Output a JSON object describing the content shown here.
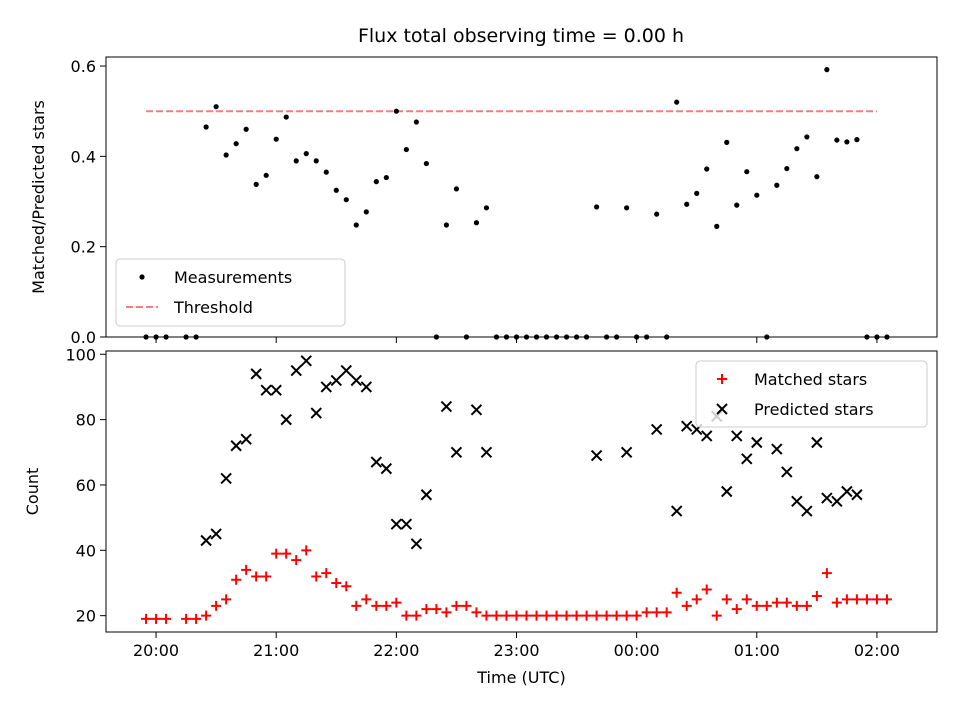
{
  "title": "Flux total observing time = 0.00 h",
  "colors": {
    "measurements": "#000000",
    "threshold": "#f08080",
    "matched": "#ff0000",
    "predicted": "#000000"
  },
  "chart_data": [
    {
      "type": "scatter",
      "ylabel": "Matched/Predicted stars",
      "xlabel": "",
      "xlim": [
        "19:35",
        "02:30"
      ],
      "ylim": [
        0,
        0.62
      ],
      "yticks": [
        "0.0",
        "0.2",
        "0.4",
        "0.6"
      ],
      "legend": {
        "placement": "bottom-left",
        "entries": [
          "Measurements",
          "Threshold"
        ]
      },
      "threshold": {
        "name": "Threshold",
        "y": 0.5,
        "x_range": [
          "19:55",
          "02:00"
        ]
      },
      "series": [
        {
          "name": "Measurements",
          "points": [
            [
              "19:55",
              0
            ],
            [
              "20:00",
              0
            ],
            [
              "20:05",
              0
            ],
            [
              "20:15",
              0
            ],
            [
              "20:20",
              0
            ],
            [
              "20:25",
              0.465
            ],
            [
              "20:30",
              0.51
            ],
            [
              "20:35",
              0.403
            ],
            [
              "20:40",
              0.428
            ],
            [
              "20:45",
              0.46
            ],
            [
              "20:50",
              0.338
            ],
            [
              "20:55",
              0.358
            ],
            [
              "21:00",
              0.438
            ],
            [
              "21:05",
              0.487
            ],
            [
              "21:10",
              0.39
            ],
            [
              "21:15",
              0.406
            ],
            [
              "21:20",
              0.39
            ],
            [
              "21:25",
              0.365
            ],
            [
              "21:30",
              0.325
            ],
            [
              "21:35",
              0.304
            ],
            [
              "21:40",
              0.248
            ],
            [
              "21:45",
              0.277
            ],
            [
              "21:50",
              0.344
            ],
            [
              "21:55",
              0.353
            ],
            [
              "22:00",
              0.5
            ],
            [
              "22:05",
              0.415
            ],
            [
              "22:10",
              0.476
            ],
            [
              "22:15",
              0.384
            ],
            [
              "22:20",
              0
            ],
            [
              "22:25",
              0.248
            ],
            [
              "22:30",
              0.328
            ],
            [
              "22:35",
              0
            ],
            [
              "22:40",
              0.253
            ],
            [
              "22:45",
              0.286
            ],
            [
              "22:50",
              0
            ],
            [
              "22:55",
              0
            ],
            [
              "23:00",
              0
            ],
            [
              "23:05",
              0
            ],
            [
              "23:10",
              0
            ],
            [
              "23:15",
              0
            ],
            [
              "23:20",
              0
            ],
            [
              "23:25",
              0
            ],
            [
              "23:30",
              0
            ],
            [
              "23:35",
              0
            ],
            [
              "23:40",
              0.288
            ],
            [
              "23:45",
              0
            ],
            [
              "23:50",
              0
            ],
            [
              "23:55",
              0.286
            ],
            [
              "00:00",
              0
            ],
            [
              "00:05",
              0
            ],
            [
              "00:10",
              0.272
            ],
            [
              "00:15",
              0
            ],
            [
              "00:20",
              0.52
            ],
            [
              "00:25",
              0.294
            ],
            [
              "00:30",
              0.318
            ],
            [
              "00:35",
              0.372
            ],
            [
              "00:40",
              0.245
            ],
            [
              "00:45",
              0.431
            ],
            [
              "00:50",
              0.292
            ],
            [
              "00:55",
              0.366
            ],
            [
              "01:00",
              0.314
            ],
            [
              "01:05",
              0
            ],
            [
              "01:10",
              0.336
            ],
            [
              "01:15",
              0.373
            ],
            [
              "01:20",
              0.417
            ],
            [
              "01:25",
              0.443
            ],
            [
              "01:30",
              0.355
            ],
            [
              "01:35",
              0.592
            ],
            [
              "01:40",
              0.436
            ],
            [
              "01:45",
              0.432
            ],
            [
              "01:50",
              0.437
            ],
            [
              "01:55",
              0
            ],
            [
              "02:00",
              0
            ],
            [
              "02:05",
              0
            ]
          ]
        }
      ],
      "xticks": [
        "20:00",
        "21:00",
        "22:00",
        "23:00",
        "00:00",
        "01:00",
        "02:00"
      ]
    },
    {
      "type": "scatter",
      "ylabel": "Count",
      "xlabel": "Time (UTC)",
      "xlim": [
        "19:35",
        "02:30"
      ],
      "ylim": [
        15,
        101
      ],
      "yticks": [
        "20",
        "40",
        "60",
        "80",
        "100"
      ],
      "xticks": [
        "20:00",
        "21:00",
        "22:00",
        "23:00",
        "00:00",
        "01:00",
        "02:00"
      ],
      "legend": {
        "placement": "top-right",
        "entries": [
          "Matched stars",
          "Predicted stars"
        ]
      },
      "series": [
        {
          "name": "Matched stars",
          "marker": "plus",
          "points": [
            [
              "19:55",
              19
            ],
            [
              "20:00",
              19
            ],
            [
              "20:05",
              19
            ],
            [
              "20:15",
              19
            ],
            [
              "20:20",
              19
            ],
            [
              "20:25",
              20
            ],
            [
              "20:30",
              23
            ],
            [
              "20:35",
              25
            ],
            [
              "20:40",
              31
            ],
            [
              "20:45",
              34
            ],
            [
              "20:50",
              32
            ],
            [
              "20:55",
              32
            ],
            [
              "21:00",
              39
            ],
            [
              "21:05",
              39
            ],
            [
              "21:10",
              37
            ],
            [
              "21:15",
              40
            ],
            [
              "21:20",
              32
            ],
            [
              "21:25",
              33
            ],
            [
              "21:30",
              30
            ],
            [
              "21:35",
              29
            ],
            [
              "21:40",
              23
            ],
            [
              "21:45",
              25
            ],
            [
              "21:50",
              23
            ],
            [
              "21:55",
              23
            ],
            [
              "22:00",
              24
            ],
            [
              "22:05",
              20
            ],
            [
              "22:10",
              20
            ],
            [
              "22:15",
              22
            ],
            [
              "22:20",
              22
            ],
            [
              "22:25",
              21
            ],
            [
              "22:30",
              23
            ],
            [
              "22:35",
              23
            ],
            [
              "22:40",
              21
            ],
            [
              "22:45",
              20
            ],
            [
              "22:50",
              20
            ],
            [
              "22:55",
              20
            ],
            [
              "23:00",
              20
            ],
            [
              "23:05",
              20
            ],
            [
              "23:10",
              20
            ],
            [
              "23:15",
              20
            ],
            [
              "23:20",
              20
            ],
            [
              "23:25",
              20
            ],
            [
              "23:30",
              20
            ],
            [
              "23:35",
              20
            ],
            [
              "23:40",
              20
            ],
            [
              "23:45",
              20
            ],
            [
              "23:50",
              20
            ],
            [
              "23:55",
              20
            ],
            [
              "00:00",
              20
            ],
            [
              "00:05",
              21
            ],
            [
              "00:10",
              21
            ],
            [
              "00:15",
              21
            ],
            [
              "00:20",
              27
            ],
            [
              "00:25",
              23
            ],
            [
              "00:30",
              25
            ],
            [
              "00:35",
              28
            ],
            [
              "00:40",
              20
            ],
            [
              "00:45",
              25
            ],
            [
              "00:50",
              22
            ],
            [
              "00:55",
              25
            ],
            [
              "01:00",
              23
            ],
            [
              "01:05",
              23
            ],
            [
              "01:10",
              24
            ],
            [
              "01:15",
              24
            ],
            [
              "01:20",
              23
            ],
            [
              "01:25",
              23
            ],
            [
              "01:30",
              26
            ],
            [
              "01:35",
              33
            ],
            [
              "01:40",
              24
            ],
            [
              "01:45",
              25
            ],
            [
              "01:50",
              25
            ],
            [
              "01:55",
              25
            ],
            [
              "02:00",
              25
            ],
            [
              "02:05",
              25
            ]
          ]
        },
        {
          "name": "Predicted stars",
          "marker": "x",
          "points": [
            [
              "20:25",
              43
            ],
            [
              "20:30",
              45
            ],
            [
              "20:35",
              62
            ],
            [
              "20:40",
              72
            ],
            [
              "20:45",
              74
            ],
            [
              "20:50",
              94
            ],
            [
              "20:55",
              89
            ],
            [
              "21:00",
              89
            ],
            [
              "21:05",
              80
            ],
            [
              "21:10",
              95
            ],
            [
              "21:15",
              98
            ],
            [
              "21:20",
              82
            ],
            [
              "21:25",
              90
            ],
            [
              "21:30",
              92
            ],
            [
              "21:35",
              95
            ],
            [
              "21:40",
              92
            ],
            [
              "21:45",
              90
            ],
            [
              "21:50",
              67
            ],
            [
              "21:55",
              65
            ],
            [
              "22:00",
              48
            ],
            [
              "22:05",
              48
            ],
            [
              "22:10",
              42
            ],
            [
              "22:15",
              57
            ],
            [
              "22:25",
              84
            ],
            [
              "22:30",
              70
            ],
            [
              "22:40",
              83
            ],
            [
              "22:45",
              70
            ],
            [
              "23:40",
              69
            ],
            [
              "23:55",
              70
            ],
            [
              "00:10",
              77
            ],
            [
              "00:20",
              52
            ],
            [
              "00:25",
              78
            ],
            [
              "00:30",
              77
            ],
            [
              "00:35",
              75
            ],
            [
              "00:40",
              81
            ],
            [
              "00:45",
              58
            ],
            [
              "00:50",
              75
            ],
            [
              "00:55",
              68
            ],
            [
              "01:00",
              73
            ],
            [
              "01:10",
              71
            ],
            [
              "01:15",
              64
            ],
            [
              "01:20",
              55
            ],
            [
              "01:25",
              52
            ],
            [
              "01:30",
              73
            ],
            [
              "01:35",
              56
            ],
            [
              "01:40",
              55
            ],
            [
              "01:45",
              58
            ],
            [
              "01:50",
              57
            ]
          ]
        }
      ]
    }
  ]
}
